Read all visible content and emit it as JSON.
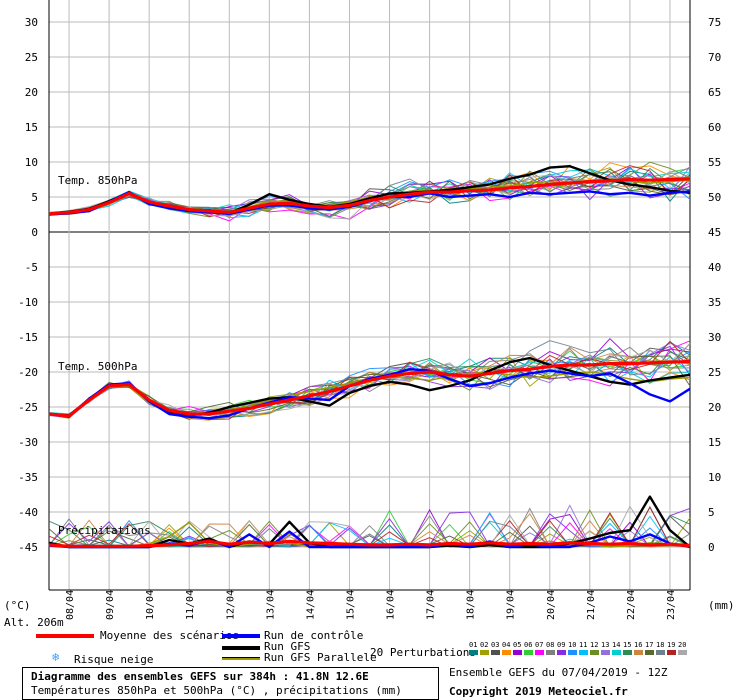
{
  "chart_data": {
    "type": "line",
    "title": "Diagramme des ensembles GEFS sur 384h : 41.8N 12.6E",
    "subtitle": "Températures 850hPa et 500hPa (°C) , précipitations (mm)",
    "left_axis": {
      "ticks": [
        30,
        25,
        20,
        15,
        10,
        5,
        0,
        -5,
        -10,
        -15,
        -20,
        -25,
        -30,
        -35,
        -40,
        -45
      ],
      "unit": "(°C)",
      "range": [
        -50,
        32
      ]
    },
    "right_axis": {
      "ticks": [
        75,
        70,
        65,
        60,
        55,
        50,
        45,
        40,
        35,
        30,
        25,
        20,
        15,
        10,
        5,
        0
      ],
      "unit": "(mm)"
    },
    "x_labels": [
      "08/04",
      "09/04",
      "10/04",
      "11/04",
      "12/04",
      "13/04",
      "14/04",
      "15/04",
      "16/04",
      "17/04",
      "18/04",
      "19/04",
      "20/04",
      "21/04",
      "22/04",
      "23/04"
    ],
    "x_range_hours": [
      0,
      384
    ],
    "grid": true,
    "annotations": [
      "Temp. 850hPa",
      "Temp. 500hPa",
      "Précipitations"
    ],
    "altitude_label": "Alt. 206m",
    "series": [
      {
        "name": "Moyenne des scénarios",
        "color": "#ff0000",
        "group": "t850",
        "x": [
          0,
          12,
          24,
          36,
          48,
          60,
          72,
          84,
          96,
          108,
          120,
          132,
          144,
          156,
          168,
          180,
          192,
          204,
          216,
          228,
          240,
          252,
          264,
          276,
          288,
          300,
          312,
          324,
          336,
          348,
          360,
          372,
          384
        ],
        "y": [
          2.6,
          2.8,
          3.2,
          4.2,
          5.5,
          4.3,
          3.7,
          3.2,
          3.0,
          2.8,
          3.4,
          4.0,
          4.1,
          3.7,
          3.5,
          3.8,
          4.5,
          5.0,
          5.4,
          5.7,
          5.7,
          5.9,
          6.0,
          6.3,
          6.5,
          6.8,
          7.0,
          7.2,
          7.3,
          7.5,
          7.4,
          7.5,
          7.6
        ]
      },
      {
        "name": "Run de contrôle",
        "color": "#0000ff",
        "group": "t850",
        "x": [
          0,
          12,
          24,
          36,
          48,
          60,
          72,
          84,
          96,
          108,
          120,
          132,
          144,
          156,
          168,
          180,
          192,
          204,
          216,
          228,
          240,
          252,
          264,
          276,
          288,
          300,
          312,
          324,
          336,
          348,
          360,
          372,
          384
        ],
        "y": [
          2.5,
          2.7,
          3.0,
          4.3,
          5.7,
          4.0,
          3.4,
          3.0,
          2.8,
          2.6,
          3.2,
          3.8,
          3.8,
          3.4,
          3.2,
          3.6,
          4.4,
          5.0,
          5.0,
          5.5,
          5.0,
          5.2,
          5.4,
          5.0,
          5.6,
          5.4,
          5.6,
          5.8,
          5.4,
          5.6,
          5.2,
          5.6,
          5.8
        ]
      },
      {
        "name": "Run GFS",
        "color": "#000000",
        "group": "t850",
        "x": [
          0,
          12,
          24,
          36,
          48,
          60,
          72,
          84,
          96,
          108,
          120,
          132,
          144,
          156,
          168,
          180,
          192,
          204,
          216,
          228,
          240,
          252,
          264,
          276,
          288,
          300,
          312,
          324,
          336,
          348,
          360,
          372,
          384
        ],
        "y": [
          2.6,
          2.9,
          3.3,
          4.4,
          5.6,
          4.1,
          3.5,
          3.1,
          3.1,
          2.7,
          3.9,
          5.4,
          4.6,
          4.0,
          3.6,
          4.0,
          4.8,
          5.5,
          5.6,
          5.8,
          6.0,
          6.4,
          6.8,
          7.6,
          8.2,
          9.2,
          9.4,
          8.4,
          7.4,
          6.8,
          6.4,
          5.9,
          5.6
        ]
      },
      {
        "name": "Run GFS Parallele",
        "color": "#9a9a00",
        "group": "t850",
        "x": [
          0,
          12,
          24,
          36,
          48,
          60,
          72,
          84,
          96,
          108,
          120,
          132,
          144,
          156,
          168,
          180,
          192,
          204,
          216,
          228,
          240,
          252,
          264,
          276,
          288,
          300,
          312,
          324,
          336,
          348,
          360,
          372,
          384
        ],
        "y": [
          2.7,
          2.8,
          3.1,
          4.1,
          5.4,
          4.4,
          3.8,
          3.3,
          3.1,
          2.9,
          3.6,
          4.4,
          4.4,
          4.0,
          3.8,
          4.3,
          5.0,
          5.4,
          5.8,
          6.0,
          5.8,
          6.2,
          6.4,
          6.6,
          7.0,
          7.2,
          7.0,
          7.4,
          7.6,
          7.2,
          7.0,
          7.2,
          7.4
        ]
      },
      {
        "name": "Moyenne des scénarios",
        "color": "#ff0000",
        "group": "t500",
        "x": [
          0,
          12,
          24,
          36,
          48,
          60,
          72,
          84,
          96,
          108,
          120,
          132,
          144,
          156,
          168,
          180,
          192,
          204,
          216,
          228,
          240,
          252,
          264,
          276,
          288,
          300,
          312,
          324,
          336,
          348,
          360,
          372,
          384
        ],
        "y": [
          -26.0,
          -26.3,
          -24.0,
          -22.0,
          -21.8,
          -24.0,
          -25.5,
          -26.0,
          -26.0,
          -25.6,
          -25.2,
          -24.6,
          -24.0,
          -23.4,
          -22.8,
          -22.0,
          -21.2,
          -20.6,
          -20.2,
          -20.0,
          -20.4,
          -20.6,
          -20.2,
          -19.8,
          -19.6,
          -19.2,
          -19.0,
          -19.0,
          -18.8,
          -18.8,
          -18.7,
          -18.6,
          -18.5
        ]
      },
      {
        "name": "Run de contrôle",
        "color": "#0000ff",
        "group": "t500",
        "x": [
          0,
          12,
          24,
          36,
          48,
          60,
          72,
          84,
          96,
          108,
          120,
          132,
          144,
          156,
          168,
          180,
          192,
          204,
          216,
          228,
          240,
          252,
          264,
          276,
          288,
          300,
          312,
          324,
          336,
          348,
          360,
          372,
          384
        ],
        "y": [
          -26.0,
          -26.4,
          -23.8,
          -21.8,
          -21.6,
          -24.2,
          -26.0,
          -26.4,
          -26.6,
          -26.2,
          -25.2,
          -24.4,
          -23.6,
          -23.8,
          -24.0,
          -22.0,
          -21.0,
          -20.4,
          -19.6,
          -19.8,
          -21.0,
          -22.0,
          -21.6,
          -20.8,
          -20.2,
          -19.8,
          -20.2,
          -20.6,
          -20.2,
          -21.6,
          -23.2,
          -24.2,
          -22.4
        ]
      },
      {
        "name": "Run GFS",
        "color": "#000000",
        "group": "t500",
        "x": [
          0,
          12,
          24,
          36,
          48,
          60,
          72,
          84,
          96,
          108,
          120,
          132,
          144,
          156,
          168,
          180,
          192,
          204,
          216,
          228,
          240,
          252,
          264,
          276,
          288,
          300,
          312,
          324,
          336,
          348,
          360,
          372,
          384
        ],
        "y": [
          -26.0,
          -26.2,
          -23.9,
          -21.9,
          -21.7,
          -24.1,
          -25.8,
          -26.2,
          -25.8,
          -25.0,
          -24.4,
          -23.8,
          -23.6,
          -24.2,
          -24.8,
          -23.0,
          -22.0,
          -21.4,
          -21.8,
          -22.6,
          -22.0,
          -21.2,
          -19.8,
          -18.6,
          -18.0,
          -19.0,
          -19.8,
          -20.6,
          -21.4,
          -21.8,
          -21.2,
          -20.8,
          -20.4
        ]
      },
      {
        "name": "Run GFS Parallele",
        "color": "#9a9a00",
        "group": "t500",
        "x": [
          0,
          12,
          24,
          36,
          48,
          60,
          72,
          84,
          96,
          108,
          120,
          132,
          144,
          156,
          168,
          180,
          192,
          204,
          216,
          228,
          240,
          252,
          264,
          276,
          288,
          300,
          312,
          324,
          336,
          348,
          360,
          372,
          384
        ],
        "y": [
          -26.0,
          -26.3,
          -24.2,
          -22.2,
          -22.0,
          -24.4,
          -25.6,
          -26.0,
          -26.0,
          -25.4,
          -24.8,
          -24.0,
          -23.4,
          -22.8,
          -22.2,
          -21.6,
          -21.0,
          -20.6,
          -20.8,
          -21.2,
          -20.6,
          -20.2,
          -20.0,
          -20.4,
          -20.8,
          -20.6,
          -20.2,
          -20.0,
          -20.4,
          -21.0,
          -21.4,
          -21.0,
          -20.8
        ]
      },
      {
        "name": "Moyenne des scénarios",
        "color": "#ff0000",
        "group": "precip",
        "x": [
          0,
          12,
          24,
          36,
          48,
          60,
          72,
          84,
          96,
          108,
          120,
          132,
          144,
          156,
          168,
          180,
          192,
          204,
          216,
          228,
          240,
          252,
          264,
          276,
          288,
          300,
          312,
          324,
          336,
          348,
          360,
          372,
          384
        ],
        "y": [
          0.3,
          0.1,
          0.1,
          0.1,
          0.1,
          0.2,
          0.3,
          0.5,
          0.8,
          0.4,
          0.7,
          0.5,
          0.8,
          0.6,
          0.5,
          0.4,
          0.3,
          0.3,
          0.4,
          0.3,
          0.5,
          0.4,
          0.6,
          0.4,
          0.5,
          0.4,
          0.6,
          0.5,
          0.4,
          0.5,
          0.3,
          0.4,
          0.2
        ]
      },
      {
        "name": "Run de contrôle",
        "color": "#0000ff",
        "group": "precip",
        "x": [
          0,
          12,
          24,
          36,
          48,
          60,
          72,
          84,
          96,
          108,
          120,
          132,
          144,
          156,
          168,
          180,
          192,
          204,
          216,
          228,
          240,
          252,
          264,
          276,
          288,
          300,
          312,
          324,
          336,
          348,
          360,
          372,
          384
        ],
        "y": [
          0.2,
          0,
          0,
          0,
          0,
          0,
          0.5,
          0.2,
          1.0,
          0,
          1.8,
          0,
          2.2,
          0,
          0,
          0,
          0,
          0,
          0,
          0,
          0.5,
          0,
          0.8,
          0,
          0.4,
          0,
          0,
          0.6,
          1.5,
          0.8,
          1.8,
          0.5,
          0
        ]
      },
      {
        "name": "Run GFS",
        "color": "#000000",
        "group": "precip",
        "x": [
          0,
          12,
          24,
          36,
          48,
          60,
          72,
          84,
          96,
          108,
          120,
          132,
          144,
          156,
          168,
          180,
          192,
          204,
          216,
          228,
          240,
          252,
          264,
          276,
          288,
          300,
          312,
          324,
          336,
          348,
          360,
          372,
          384
        ],
        "y": [
          0.6,
          0,
          0,
          0,
          0,
          0,
          1.0,
          0.5,
          1.2,
          0,
          0.8,
          0.4,
          3.6,
          0.6,
          0,
          0,
          0,
          0,
          0,
          0,
          0.2,
          0,
          0.3,
          0,
          0,
          0,
          0.5,
          1.2,
          2.0,
          2.4,
          7.2,
          2.4,
          0
        ]
      },
      {
        "name": "Run GFS Parallele",
        "color": "#9a9a00",
        "group": "precip",
        "x": [
          0,
          12,
          24,
          36,
          48,
          60,
          72,
          84,
          96,
          108,
          120,
          132,
          144,
          156,
          168,
          180,
          192,
          204,
          216,
          228,
          240,
          252,
          264,
          276,
          288,
          300,
          312,
          324,
          336,
          348,
          360,
          372,
          384
        ],
        "y": [
          0.3,
          0,
          0,
          0,
          0,
          0.5,
          1.5,
          3.5,
          0.6,
          0,
          0.4,
          0.8,
          0.6,
          0,
          0,
          0,
          0,
          0,
          0,
          0,
          0.6,
          0,
          0.4,
          0,
          0,
          0,
          0.8,
          0.4,
          0,
          0.2,
          0.6,
          0.4,
          0
        ]
      }
    ],
    "perturbation_colors": [
      "#008080",
      "#a0a000",
      "#505050",
      "#ff8c00",
      "#9400d3",
      "#32cd32",
      "#ff00ff",
      "#808080",
      "#8a2be2",
      "#1e90ff",
      "#00bfff",
      "#6b8e23",
      "#9370db",
      "#00ced1",
      "#2e8b57",
      "#cd853f",
      "#556b2f",
      "#708090",
      "#b22222",
      "#a9a9a9"
    ]
  },
  "legend": {
    "mean": "Moyenne des scénarios",
    "control": "Run de contrôle",
    "gfs": "Run GFS",
    "gfs_parallel": "Run GFS Parallele",
    "snow_risk": "Risque neige",
    "perturbations": "20 Perturbations",
    "pert_numbers": [
      "01",
      "02",
      "03",
      "04",
      "05",
      "06",
      "07",
      "08",
      "09",
      "10",
      "11",
      "12",
      "13",
      "14",
      "15",
      "16",
      "17",
      "18",
      "19",
      "20"
    ]
  },
  "footer": {
    "title": "Diagramme des ensembles GEFS sur 384h : 41.8N 12.6E",
    "subtitle": "Températures 850hPa et 500hPa (°C) , précipitations (mm)",
    "ensemble_info": "Ensemble GEFS du 07/04/2019 - 12Z",
    "copyright": "Copyright 2019 Meteociel.fr"
  },
  "colors": {
    "mean": "#ff0000",
    "control": "#0000ff",
    "gfs": "#000000",
    "gfs_parallel": "#9a9a00",
    "snow": "#33a0ff"
  }
}
